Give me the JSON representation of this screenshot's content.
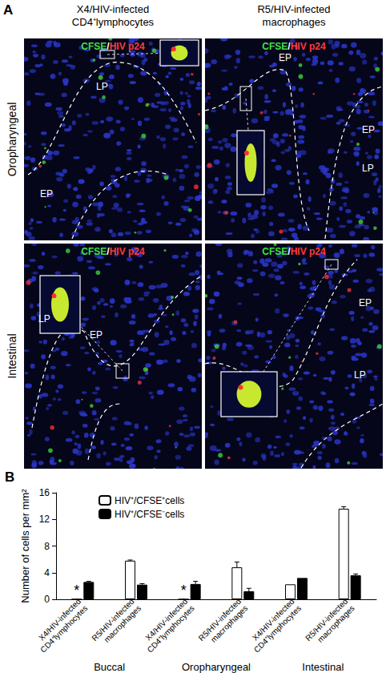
{
  "panel_a": {
    "label": "A",
    "columns": [
      "X4/HIV-infected\nCD4⁺lymphocytes",
      "R5/HIV-infected\nmacrophages"
    ],
    "rows": [
      "Oropharyngeal",
      "Intestinal"
    ],
    "stain_label": "CFSE/HIV p24",
    "panels": [
      {
        "regions": [
          "EP",
          "LP"
        ]
      },
      {
        "regions": [
          "EP",
          "EP",
          "LP"
        ]
      },
      {
        "regions": [
          "LP",
          "EP"
        ]
      },
      {
        "regions": [
          "EP",
          "LP"
        ]
      }
    ]
  },
  "panel_b": {
    "label": "B"
  },
  "chart_data": {
    "type": "bar",
    "y_label": "Number of cells per mm²",
    "categories": [
      "X4/HIV-infected\nCD4⁺lymphocytes",
      "R5/HIV-infected\nmacrophages",
      "X4/HIV-infected\nCD4⁺lymphocytes",
      "R5/HIV-infected\nmacrophages",
      "X4/HIV-infected\nCD4⁺lymphocytes",
      "R5/HIV-infected\nmacrophages"
    ],
    "group_labels": [
      "Buccal",
      "Oropharyngeal",
      "Intestinal"
    ],
    "series": [
      {
        "name": "HIV⁺/CFSE⁺cells",
        "color": "#ffffff",
        "values": [
          0,
          5.8,
          0,
          4.8,
          2.25,
          13.6
        ],
        "errors": [
          null,
          0.1,
          null,
          0.8,
          null,
          0.3
        ],
        "value_labels": [
          "*",
          null,
          "*",
          null,
          null,
          null
        ]
      },
      {
        "name": "HIV⁺/CFSE⁻cells",
        "color": "#000000",
        "values": [
          2.6,
          2.2,
          2.3,
          1.2,
          3.2,
          3.6
        ],
        "errors": [
          0.1,
          0.15,
          0.4,
          0.45,
          null,
          0.2
        ]
      }
    ],
    "ylim": [
      0,
      16
    ],
    "yticks": [
      0,
      4,
      8,
      12,
      16
    ],
    "grid": false,
    "legend": "upper left"
  }
}
